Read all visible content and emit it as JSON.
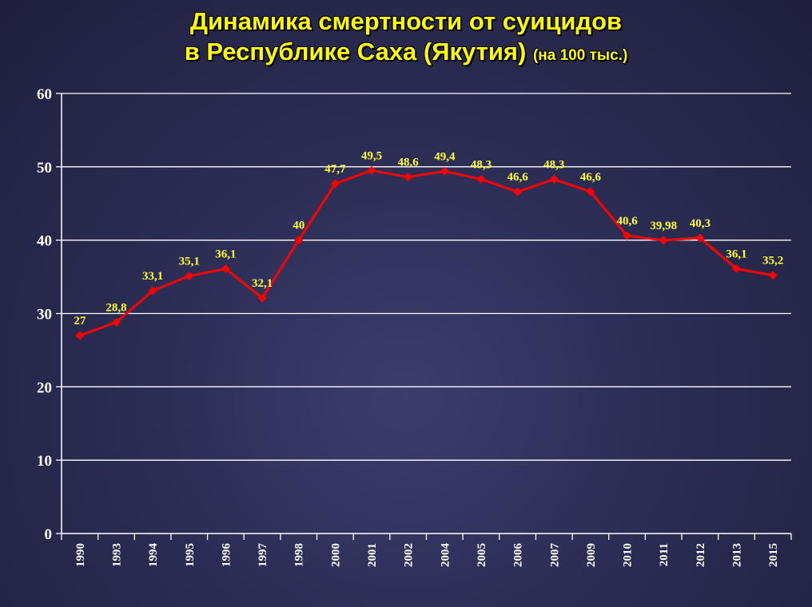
{
  "title": {
    "line1": "Динамика смертности от суицидов",
    "line2": "в Республике Саха (Якутия)",
    "unit_note": "(на 100 тыс.)"
  },
  "colors": {
    "line": "#ff0000",
    "labels": "#ffff33",
    "title": "#ffff00",
    "grid": "#ffffff"
  },
  "chart_data": {
    "type": "line",
    "categories": [
      "1990",
      "1993",
      "1994",
      "1995",
      "1996",
      "1997",
      "1998",
      "2000",
      "2001",
      "2002",
      "2004",
      "2005",
      "2006",
      "2007",
      "2009",
      "2010",
      "2011",
      "2012",
      "2013",
      "2015"
    ],
    "values": [
      27,
      28.8,
      33.1,
      35.1,
      36.1,
      32.1,
      40,
      47.7,
      49.5,
      48.6,
      49.4,
      48.3,
      46.6,
      48.3,
      46.6,
      40.6,
      39.98,
      40.3,
      36.1,
      35.2
    ],
    "value_labels": [
      "27",
      "28,8",
      "33,1",
      "35,1",
      "36,1",
      "32,1",
      "40",
      "47,7",
      "49,5",
      "48,6",
      "49,4",
      "48,3",
      "46,6",
      "48,3",
      "46,6",
      "40,6",
      "39,98",
      "40,3",
      "36,1",
      "35,2"
    ],
    "y_ticks": [
      "0",
      "10",
      "20",
      "30",
      "40",
      "50",
      "60"
    ],
    "ylim": [
      0,
      60
    ],
    "grid": true,
    "legend": "none"
  }
}
